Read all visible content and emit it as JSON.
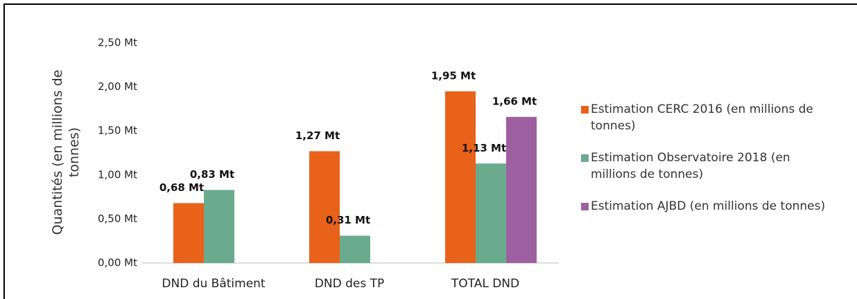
{
  "chart_data": {
    "type": "bar",
    "ylabel": "Quantités (en millions de tonnes)",
    "categories": [
      "DND du Bâtiment",
      "DND des TP",
      "TOTAL DND"
    ],
    "series": [
      {
        "name": "Estimation CERC 2016 (en millions de tonnes)",
        "color": "#e8621a",
        "values": [
          0.68,
          1.27,
          1.95
        ],
        "value_labels": [
          "0,68 Mt",
          "1,27 Mt",
          "1,95 Mt"
        ]
      },
      {
        "name": "Estimation Observatoire 2018 (en millions de tonnes)",
        "color": "#6aab8e",
        "values": [
          0.83,
          0.31,
          1.13
        ],
        "value_labels": [
          "0,83 Mt",
          "0,31 Mt",
          "1,13 Mt"
        ]
      },
      {
        "name": "Estimation AJBD (en millions de tonnes)",
        "color": "#9e5fa0",
        "values": [
          null,
          null,
          1.66
        ],
        "value_labels": [
          null,
          null,
          "1,66 Mt"
        ]
      }
    ],
    "ylim": [
      0,
      2.5
    ],
    "yticks": [
      {
        "value": 0,
        "label": "0,00 Mt"
      },
      {
        "value": 0.5,
        "label": "0,50 Mt"
      },
      {
        "value": 1,
        "label": "1,00 Mt"
      },
      {
        "value": 1.5,
        "label": "1,50 Mt"
      },
      {
        "value": 2,
        "label": "2,00 Mt"
      },
      {
        "value": 2.5,
        "label": "2,50 Mt"
      }
    ],
    "grid": false,
    "legend": "right"
  }
}
